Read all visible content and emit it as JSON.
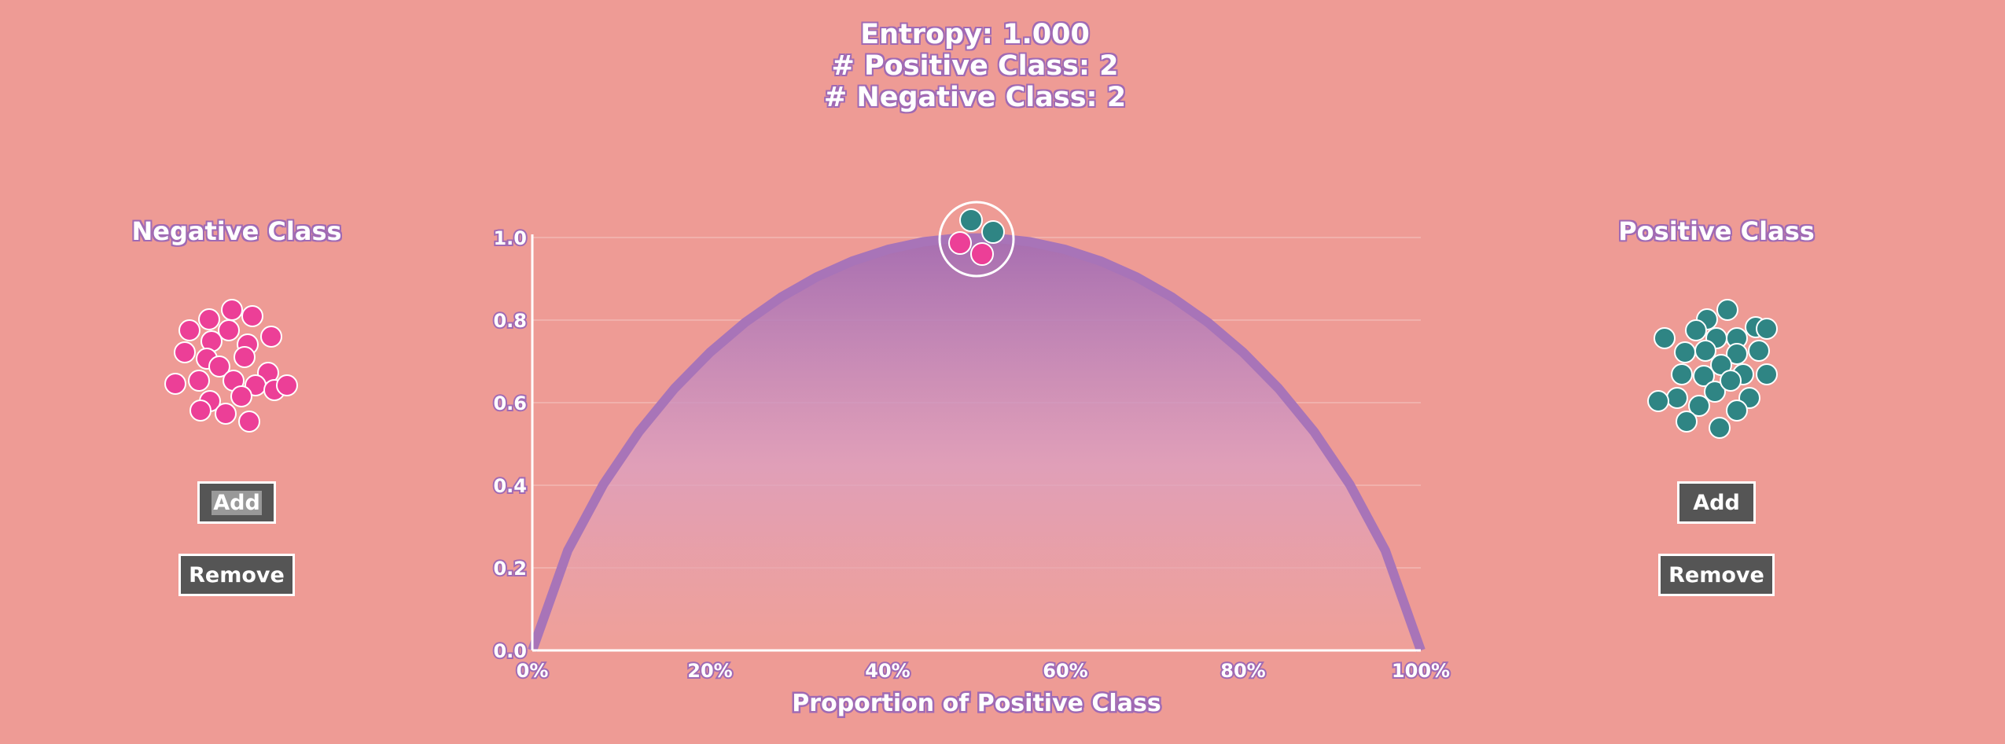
{
  "header": {
    "entropy_line": "Entropy: 1.000",
    "positive_line": "# Positive Class: 2",
    "negative_line": "# Negative Class: 2"
  },
  "negative_panel": {
    "title": "Negative Class",
    "add_label": "Add",
    "remove_label": "Remove",
    "color": "#ec3f97",
    "ball_count": 24
  },
  "positive_panel": {
    "title": "Positive Class",
    "add_label": "Add",
    "remove_label": "Remove",
    "color": "#2f8584",
    "ball_count": 26
  },
  "chart_data": {
    "type": "area",
    "title": "",
    "xlabel": "Proportion of Positive Class",
    "ylabel": "",
    "xlim": [
      0,
      1
    ],
    "ylim": [
      0,
      1
    ],
    "x_ticks": [
      "0%",
      "20%",
      "40%",
      "60%",
      "80%",
      "100%"
    ],
    "y_ticks": [
      "0.0",
      "0.2",
      "0.4",
      "0.6",
      "0.8",
      "1.0"
    ],
    "grid": true,
    "curve_color": "#a874b8",
    "current_point": {
      "x": 0.5,
      "y": 1.0,
      "positive": 2,
      "negative": 2
    }
  }
}
